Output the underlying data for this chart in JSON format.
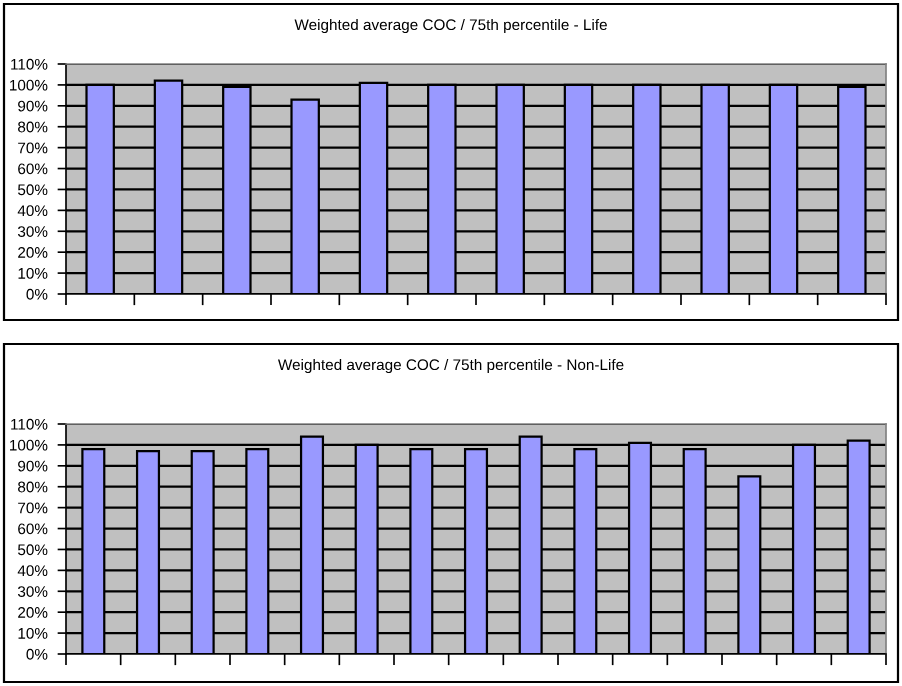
{
  "chart_data": [
    {
      "type": "bar",
      "title": "Weighted average COC / 75th percentile - Life",
      "categories": [
        null,
        null,
        null,
        null,
        null,
        null,
        null,
        null,
        null,
        null,
        null,
        null
      ],
      "values": [
        100,
        102,
        99,
        93,
        101,
        100,
        100,
        100,
        100,
        100,
        100,
        99
      ],
      "color": "#9999ff",
      "ylim": [
        0,
        110
      ],
      "yticks": [
        {
          "value": 0,
          "label": "0%"
        },
        {
          "value": 10,
          "label": "10%"
        },
        {
          "value": 20,
          "label": "20%"
        },
        {
          "value": 30,
          "label": "30%"
        },
        {
          "value": 40,
          "label": "40%"
        },
        {
          "value": 50,
          "label": "50%"
        },
        {
          "value": 60,
          "label": "60%"
        },
        {
          "value": 70,
          "label": "70%"
        },
        {
          "value": 80,
          "label": "80%"
        },
        {
          "value": 90,
          "label": "90%"
        },
        {
          "value": 100,
          "label": "100%"
        },
        {
          "value": 110,
          "label": "110%"
        }
      ],
      "grid": "y",
      "legend": false,
      "tick_labels": "y"
    },
    {
      "type": "bar",
      "title": "Weighted average COC / 75th percentile - Non-Life",
      "categories": [
        null,
        null,
        null,
        null,
        null,
        null,
        null,
        null,
        null,
        null,
        null,
        null,
        null,
        null,
        null
      ],
      "values": [
        98,
        97,
        97,
        98,
        104,
        100,
        98,
        98,
        104,
        98,
        101,
        98,
        85,
        100,
        102
      ],
      "color": "#9999ff",
      "ylim": [
        0,
        110
      ],
      "yticks": [
        {
          "value": 0,
          "label": "0%"
        },
        {
          "value": 10,
          "label": "10%"
        },
        {
          "value": 20,
          "label": "20%"
        },
        {
          "value": 30,
          "label": "30%"
        },
        {
          "value": 40,
          "label": "40%"
        },
        {
          "value": 50,
          "label": "50%"
        },
        {
          "value": 60,
          "label": "60%"
        },
        {
          "value": 70,
          "label": "70%"
        },
        {
          "value": 80,
          "label": "80%"
        },
        {
          "value": 90,
          "label": "90%"
        },
        {
          "value": 100,
          "label": "100%"
        },
        {
          "value": 110,
          "label": "110%"
        }
      ],
      "grid": "y",
      "legend": false,
      "tick_labels": "y"
    }
  ]
}
